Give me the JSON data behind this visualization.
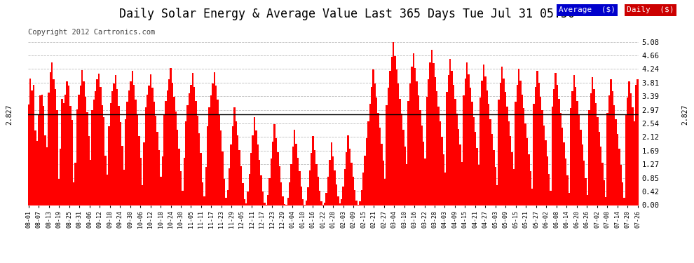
{
  "title": "Daily Solar Energy & Average Value Last 365 Days Tue Jul 31 05:50",
  "copyright": "Copyright 2012 Cartronics.com",
  "average_value": 2.827,
  "average_label": "2.827",
  "ylim": [
    0.0,
    5.08
  ],
  "yticks": [
    0.0,
    0.42,
    0.85,
    1.27,
    1.69,
    2.12,
    2.54,
    2.97,
    3.39,
    3.81,
    4.24,
    4.66,
    5.08
  ],
  "bar_color": "#ff0000",
  "avg_line_color": "#000000",
  "background_color": "#ffffff",
  "grid_color": "#bbbbbb",
  "legend_avg_bg": "#0000cc",
  "legend_daily_bg": "#cc0000",
  "legend_text_color": "#ffffff",
  "title_fontsize": 12,
  "copyright_fontsize": 7.5,
  "xtick_fontsize": 6,
  "ytick_fontsize": 7.5,
  "bar_values": [
    3.14,
    3.94,
    3.58,
    3.75,
    2.32,
    2.01,
    2.82,
    3.42,
    3.45,
    3.1,
    2.18,
    1.8,
    3.5,
    4.15,
    4.45,
    3.92,
    3.62,
    2.95,
    0.82,
    1.75,
    3.31,
    3.18,
    3.45,
    3.85,
    3.72,
    3.1,
    2.65,
    0.7,
    1.32,
    2.98,
    3.45,
    3.72,
    4.2,
    3.85,
    3.38,
    2.9,
    2.15,
    1.4,
    2.95,
    3.28,
    3.55,
    3.92,
    4.1,
    3.68,
    3.12,
    2.75,
    1.55,
    0.95,
    2.45,
    3.18,
    3.55,
    3.8,
    4.05,
    3.62,
    3.1,
    2.58,
    1.85,
    1.1,
    2.68,
    3.22,
    3.58,
    3.85,
    4.18,
    3.75,
    3.28,
    2.82,
    2.15,
    1.48,
    0.62,
    1.95,
    3.05,
    3.45,
    3.72,
    4.08,
    3.65,
    3.22,
    2.78,
    2.28,
    1.72,
    0.88,
    1.52,
    2.82,
    3.25,
    3.58,
    3.92,
    4.28,
    3.82,
    3.38,
    2.92,
    2.35,
    1.75,
    1.05,
    0.45,
    1.48,
    2.62,
    3.12,
    3.48,
    3.75,
    4.12,
    3.68,
    3.25,
    2.78,
    2.25,
    1.62,
    0.72,
    0.28,
    1.18,
    2.45,
    3.05,
    3.42,
    3.78,
    4.15,
    3.72,
    3.28,
    2.82,
    2.32,
    1.68,
    0.82,
    0.22,
    0.48,
    1.15,
    1.88,
    2.45,
    3.05,
    2.62,
    2.18,
    1.72,
    1.22,
    0.68,
    0.18,
    0.05,
    0.42,
    0.98,
    1.62,
    2.18,
    2.75,
    2.32,
    1.88,
    1.42,
    0.92,
    0.42,
    0.08,
    0.02,
    0.32,
    0.85,
    1.45,
    1.98,
    2.52,
    2.08,
    1.65,
    1.22,
    0.72,
    0.28,
    0.04,
    0.02,
    0.22,
    0.72,
    1.28,
    1.82,
    2.35,
    1.92,
    1.48,
    1.05,
    0.58,
    0.18,
    0.02,
    0.15,
    0.55,
    1.08,
    1.62,
    2.15,
    1.72,
    1.28,
    0.88,
    0.45,
    0.12,
    0.01,
    0.08,
    0.38,
    0.88,
    1.42,
    1.95,
    1.52,
    1.08,
    0.65,
    0.28,
    0.05,
    0.18,
    0.58,
    1.12,
    1.65,
    2.18,
    1.75,
    1.32,
    0.88,
    0.48,
    0.15,
    0.02,
    0.12,
    0.48,
    1.02,
    1.55,
    2.08,
    2.62,
    3.15,
    3.68,
    4.22,
    3.78,
    3.35,
    2.88,
    2.42,
    1.92,
    1.38,
    0.82,
    3.12,
    3.65,
    4.18,
    4.62,
    5.08,
    4.65,
    4.22,
    3.78,
    3.32,
    2.85,
    2.35,
    1.82,
    1.28,
    3.25,
    3.78,
    4.32,
    4.72,
    4.28,
    3.85,
    3.42,
    2.95,
    2.48,
    1.98,
    1.45,
    3.38,
    3.92,
    4.45,
    4.85,
    4.42,
    3.98,
    3.55,
    3.08,
    2.62,
    2.12,
    1.58,
    1.02,
    3.52,
    4.05,
    4.55,
    4.18,
    3.75,
    3.32,
    2.85,
    2.38,
    1.88,
    1.35,
    3.42,
    3.95,
    4.45,
    4.08,
    3.65,
    3.22,
    2.75,
    2.28,
    1.78,
    1.25,
    3.35,
    3.88,
    4.38,
    4.02,
    3.58,
    3.15,
    2.68,
    2.22,
    1.72,
    1.18,
    0.62,
    3.28,
    3.82,
    4.32,
    3.95,
    3.52,
    3.08,
    2.62,
    2.15,
    1.65,
    1.12,
    3.22,
    3.75,
    4.25,
    3.88,
    3.45,
    3.02,
    2.55,
    2.08,
    1.58,
    1.05,
    0.52,
    3.15,
    3.68,
    4.18,
    3.82,
    3.38,
    2.95,
    2.48,
    2.02,
    1.52,
    0.98,
    0.45,
    3.08,
    3.62,
    4.12,
    3.75,
    3.32,
    2.88,
    2.42,
    1.95,
    1.45,
    0.92,
    0.38,
    3.02,
    3.55,
    4.05,
    3.68,
    3.25,
    2.82,
    2.35,
    1.88,
    1.38,
    0.85,
    0.32,
    2.95,
    3.48,
    3.98,
    3.62,
    3.18,
    2.75,
    2.28,
    1.82,
    1.32,
    0.78,
    0.25,
    2.88,
    3.42,
    3.92,
    3.55,
    3.12,
    2.68,
    2.22,
    1.75,
    1.25,
    0.72,
    0.22,
    2.82,
    3.35,
    3.85,
    3.48,
    3.05,
    2.62,
    3.75,
    3.92
  ],
  "xtick_labels": [
    "08-01",
    "08-07",
    "08-13",
    "08-19",
    "08-25",
    "08-31",
    "09-06",
    "09-12",
    "09-18",
    "09-24",
    "09-30",
    "10-06",
    "10-12",
    "10-18",
    "10-24",
    "10-30",
    "11-05",
    "11-11",
    "11-17",
    "11-23",
    "11-29",
    "12-05",
    "12-11",
    "12-17",
    "12-23",
    "12-29",
    "01-04",
    "01-10",
    "01-16",
    "01-22",
    "01-28",
    "02-03",
    "02-09",
    "02-15",
    "02-21",
    "02-27",
    "03-04",
    "03-10",
    "03-16",
    "03-22",
    "03-28",
    "04-03",
    "04-09",
    "04-15",
    "04-21",
    "04-27",
    "05-03",
    "05-09",
    "05-15",
    "05-21",
    "05-27",
    "06-02",
    "06-08",
    "06-14",
    "06-20",
    "06-26",
    "07-02",
    "07-08",
    "07-14",
    "07-20",
    "07-26"
  ]
}
